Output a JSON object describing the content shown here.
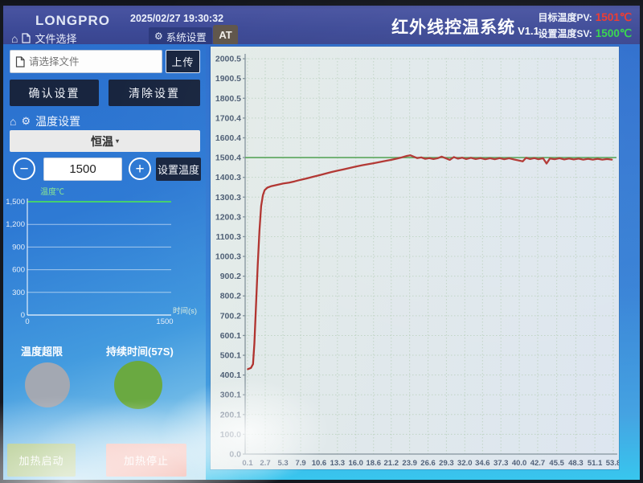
{
  "header": {
    "logo": "LONGPRO",
    "timestamp": "2025/02/27 19:30:32",
    "nav_file": "文件选择",
    "system_settings": "系统设置",
    "at": "AT",
    "title": "红外线控温系统",
    "version": "V1.1",
    "pv_label": "目标温度PV:",
    "pv_value": "1501℃",
    "pv_color": "#f0382c",
    "sv_label": "设置温度SV:",
    "sv_value": "1500℃",
    "sv_color": "#35d64b"
  },
  "sidebar": {
    "file_placeholder": "请选择文件",
    "upload": "上传",
    "confirm": "确认设置",
    "clear": "清除设置",
    "temp_section": "温度设置",
    "mode": "恒温",
    "mode_caret": "▾",
    "minus": "−",
    "plus": "+",
    "temp_value": "1500",
    "set_temp": "设置温度",
    "overlimit_label": "温度超限",
    "overlimit_color": "#a3a8b2",
    "duration_label": "持续时间(57S)",
    "duration_color": "#6aa941",
    "heat_start": "加热启动",
    "heat_stop": "加热停止"
  },
  "chart_data": [
    {
      "id": "main-temperature-trend",
      "type": "line",
      "title": "",
      "xlabel": "",
      "ylabel": "",
      "grid": true,
      "xlim": [
        0.1,
        53.8
      ],
      "ylim": [
        0,
        2005
      ],
      "x_ticks": [
        "0.1",
        "2.7",
        "5.3",
        "7.9",
        "10.6",
        "13.3",
        "16.0",
        "18.6",
        "21.2",
        "23.9",
        "26.6",
        "29.3",
        "32.0",
        "34.6",
        "37.3",
        "40.0",
        "42.7",
        "45.5",
        "48.3",
        "51.1",
        "53.8"
      ],
      "y_ticks": [
        "2000.5",
        "1900.5",
        "1800.5",
        "1700.4",
        "1600.4",
        "1500.4",
        "1400.3",
        "1300.3",
        "1200.3",
        "1100.3",
        "1000.3",
        "900.2",
        "800.2",
        "700.2",
        "600.1",
        "500.1",
        "400.1",
        "300.1",
        "200.1",
        "100.0",
        "0.0"
      ],
      "setpoint_line": {
        "value": 1500.4,
        "color": "#55a357"
      },
      "series": [
        {
          "name": "measured-temperature",
          "color": "#b0322e",
          "points": [
            [
              0.15,
              430
            ],
            [
              0.6,
              436
            ],
            [
              0.9,
              455
            ],
            [
              1.1,
              560
            ],
            [
              1.35,
              760
            ],
            [
              1.6,
              960
            ],
            [
              1.85,
              1130
            ],
            [
              2.1,
              1255
            ],
            [
              2.35,
              1310
            ],
            [
              2.6,
              1335
            ],
            [
              3.0,
              1348
            ],
            [
              3.6,
              1356
            ],
            [
              4.4,
              1362
            ],
            [
              5.3,
              1369
            ],
            [
              6.2,
              1374
            ],
            [
              7.0,
              1380
            ],
            [
              7.9,
              1388
            ],
            [
              8.8,
              1395
            ],
            [
              9.7,
              1403
            ],
            [
              10.6,
              1411
            ],
            [
              11.5,
              1419
            ],
            [
              12.4,
              1427
            ],
            [
              13.3,
              1434
            ],
            [
              14.2,
              1441
            ],
            [
              15.1,
              1448
            ],
            [
              16.0,
              1455
            ],
            [
              17.0,
              1462
            ],
            [
              18.0,
              1468
            ],
            [
              18.6,
              1472
            ],
            [
              19.5,
              1478
            ],
            [
              20.4,
              1484
            ],
            [
              21.2,
              1489
            ],
            [
              22.0,
              1495
            ],
            [
              22.8,
              1502
            ],
            [
              23.5,
              1509
            ],
            [
              24.0,
              1512
            ],
            [
              24.5,
              1505
            ],
            [
              25.0,
              1498
            ],
            [
              25.6,
              1501
            ],
            [
              26.2,
              1494
            ],
            [
              26.8,
              1498
            ],
            [
              27.4,
              1493
            ],
            [
              28.0,
              1497
            ],
            [
              28.6,
              1505
            ],
            [
              29.2,
              1497
            ],
            [
              29.8,
              1489
            ],
            [
              30.4,
              1503
            ],
            [
              31.0,
              1495
            ],
            [
              31.6,
              1500
            ],
            [
              32.2,
              1493
            ],
            [
              32.9,
              1499
            ],
            [
              33.6,
              1493
            ],
            [
              34.3,
              1498
            ],
            [
              35.0,
              1492
            ],
            [
              35.7,
              1497
            ],
            [
              36.4,
              1492
            ],
            [
              37.1,
              1498
            ],
            [
              37.8,
              1492
            ],
            [
              38.5,
              1497
            ],
            [
              39.2,
              1491
            ],
            [
              39.9,
              1486
            ],
            [
              40.5,
              1481
            ],
            [
              41.0,
              1499
            ],
            [
              41.6,
              1493
            ],
            [
              42.2,
              1498
            ],
            [
              42.8,
              1492
            ],
            [
              43.5,
              1497
            ],
            [
              44.0,
              1470
            ],
            [
              44.5,
              1496
            ],
            [
              45.2,
              1492
            ],
            [
              45.9,
              1497
            ],
            [
              46.6,
              1491
            ],
            [
              47.3,
              1496
            ],
            [
              48.0,
              1491
            ],
            [
              48.7,
              1495
            ],
            [
              49.4,
              1490
            ],
            [
              50.1,
              1494
            ],
            [
              50.8,
              1490
            ],
            [
              51.5,
              1494
            ],
            [
              52.2,
              1490
            ],
            [
              52.9,
              1493
            ],
            [
              53.6,
              1490
            ]
          ]
        }
      ]
    },
    {
      "id": "sidebar-mini-chart",
      "type": "line",
      "ylabel": "温度℃",
      "xlabel": "时间(s)",
      "grid": true,
      "xlim": [
        0,
        1500
      ],
      "ylim": [
        0,
        1500
      ],
      "x_ticks": [
        "0",
        "1500"
      ],
      "y_ticks": [
        "1,500",
        "1,200",
        "900",
        "600",
        "300",
        "0"
      ],
      "setpoint_line": {
        "value": 1500,
        "color": "#45cf6f"
      },
      "series": []
    }
  ]
}
